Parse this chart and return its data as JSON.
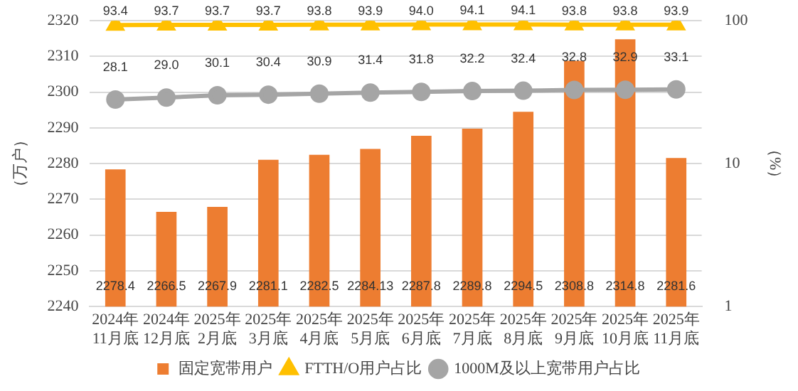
{
  "chart_data": {
    "type": "bar",
    "categories": [
      "2024年11月底",
      "2024年12月底",
      "2025年2月底",
      "2025年3月底",
      "2025年4月底",
      "2025年5月底",
      "2025年6月底",
      "2025年7月底",
      "2025年8月底",
      "2025年9月底",
      "2025年10月底",
      "2025年11月底"
    ],
    "series": [
      {
        "name": "固定宽带用户",
        "color": "#ed7d31",
        "values": [
          2278.4,
          2266.5,
          2267.9,
          2281.1,
          2282.5,
          2284.13,
          2287.8,
          2289.8,
          2294.5,
          2308.8,
          2314.8,
          2281.6
        ],
        "value_labels": [
          "2278.4",
          "2266.5",
          "2267.9",
          "2281.1",
          "2282.5",
          "2284.13",
          "2287.8",
          "2289.8",
          "2294.5",
          "2308.8",
          "2314.8",
          "2281.6"
        ]
      },
      {
        "name": "FTTH/O用户占比",
        "type": "line",
        "axis": "y2",
        "marker": "triangle",
        "color": "#ffc000",
        "values": [
          93.4,
          93.7,
          93.7,
          93.7,
          93.8,
          93.9,
          94.0,
          94.1,
          94.1,
          93.8,
          93.8,
          93.9
        ],
        "value_labels": [
          "93.4",
          "93.7",
          "93.7",
          "93.7",
          "93.8",
          "93.9",
          "94.0",
          "94.1",
          "94.1",
          "93.8",
          "93.8",
          "93.9"
        ]
      },
      {
        "name": "1000M及以上宽带用户占比",
        "type": "line",
        "axis": "y2",
        "marker": "circle",
        "color": "#a5a5a5",
        "values": [
          28.1,
          29.0,
          30.1,
          30.4,
          30.9,
          31.4,
          31.8,
          32.2,
          32.4,
          32.8,
          32.9,
          33.1
        ],
        "value_labels": [
          "28.1",
          "29.0",
          "30.1",
          "30.4",
          "30.9",
          "31.4",
          "31.8",
          "32.2",
          "32.4",
          "32.8",
          "32.9",
          "33.1"
        ]
      }
    ],
    "ylabel": "（万户）",
    "y2label": "（%）",
    "ylim": [
      2240,
      2320
    ],
    "yticks": [
      2240,
      2250,
      2260,
      2270,
      2280,
      2290,
      2300,
      2310,
      2320
    ],
    "y2lim": [
      1,
      100
    ],
    "y2ticks": [
      1,
      10,
      100
    ],
    "log": "y2",
    "grid": "y",
    "legend": "bottom",
    "line_style": "solid"
  }
}
